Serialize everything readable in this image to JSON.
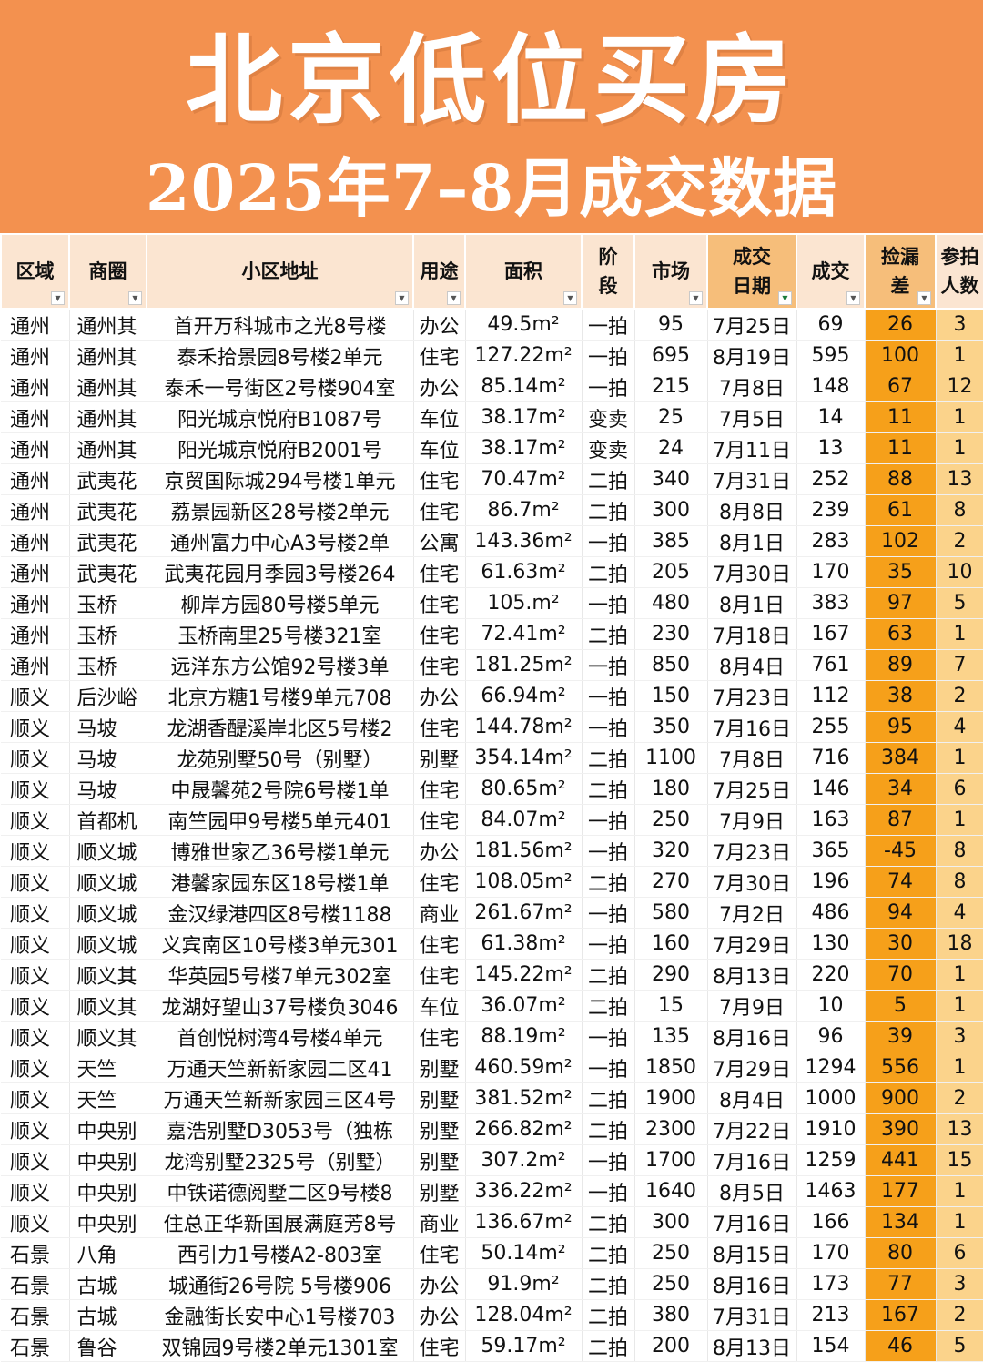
{
  "title_line1": "北京低位买房",
  "title_line2": "2025年7–8月成交数据",
  "headers": [
    {
      "label": "区域",
      "filter": "filter-arrow-icon"
    },
    {
      "label": "商圈",
      "filter": "filter-arrow-icon"
    },
    {
      "label": "小区地址",
      "filter": "filter-arrow-icon"
    },
    {
      "label": "用途",
      "filter": "filter-arrow-icon"
    },
    {
      "label": "面积",
      "filter": "filter-arrow-icon"
    },
    {
      "label": "阶段",
      "filter": ""
    },
    {
      "label": "市场",
      "filter": "filter-arrow-icon"
    },
    {
      "label": "成交日期",
      "filter": "filter-active-icon"
    },
    {
      "label": "成交",
      "filter": "filter-arrow-icon"
    },
    {
      "label": "捡漏差",
      "filter": "filter-arrow-icon"
    },
    {
      "label": "参拍人数",
      "filter": ""
    }
  ],
  "rows": [
    [
      "通州",
      "通州其",
      "首开万科城市之光8号楼",
      "办公",
      "49.5m²",
      "一拍",
      "95",
      "7月25日",
      "69",
      "26",
      "3"
    ],
    [
      "通州",
      "通州其",
      "泰禾拾景园8号楼2单元",
      "住宅",
      "127.22m²",
      "一拍",
      "695",
      "8月19日",
      "595",
      "100",
      "1"
    ],
    [
      "通州",
      "通州其",
      "泰禾一号街区2号楼904室",
      "办公",
      "85.14m²",
      "一拍",
      "215",
      "7月8日",
      "148",
      "67",
      "12"
    ],
    [
      "通州",
      "通州其",
      "阳光城京悦府B1087号",
      "车位",
      "38.17m²",
      "变卖",
      "25",
      "7月5日",
      "14",
      "11",
      "1"
    ],
    [
      "通州",
      "通州其",
      "阳光城京悦府B2001号",
      "车位",
      "38.17m²",
      "变卖",
      "24",
      "7月11日",
      "13",
      "11",
      "1"
    ],
    [
      "通州",
      "武夷花",
      "京贸国际城294号楼1单元",
      "住宅",
      "70.47m²",
      "二拍",
      "340",
      "7月31日",
      "252",
      "88",
      "13"
    ],
    [
      "通州",
      "武夷花",
      "荔景园新区28号楼2单元",
      "住宅",
      "86.7m²",
      "二拍",
      "300",
      "8月8日",
      "239",
      "61",
      "8"
    ],
    [
      "通州",
      "武夷花",
      "通州富力中心A3号楼2单",
      "公寓",
      "143.36m²",
      "一拍",
      "385",
      "8月1日",
      "283",
      "102",
      "2"
    ],
    [
      "通州",
      "武夷花",
      "武夷花园月季园3号楼264",
      "住宅",
      "61.63m²",
      "二拍",
      "205",
      "7月30日",
      "170",
      "35",
      "10"
    ],
    [
      "通州",
      "玉桥",
      "柳岸方园80号楼5单元",
      "住宅",
      "105.m²",
      "一拍",
      "480",
      "8月1日",
      "383",
      "97",
      "5"
    ],
    [
      "通州",
      "玉桥",
      "玉桥南里25号楼321室",
      "住宅",
      "72.41m²",
      "二拍",
      "230",
      "7月18日",
      "167",
      "63",
      "1"
    ],
    [
      "通州",
      "玉桥",
      "远洋东方公馆92号楼3单",
      "住宅",
      "181.25m²",
      "一拍",
      "850",
      "8月4日",
      "761",
      "89",
      "7"
    ],
    [
      "顺义",
      "后沙峪",
      "北京方糖1号楼9单元708",
      "办公",
      "66.94m²",
      "一拍",
      "150",
      "7月23日",
      "112",
      "38",
      "2"
    ],
    [
      "顺义",
      "马坡",
      "龙湖香醍溪岸北区5号楼2",
      "住宅",
      "144.78m²",
      "一拍",
      "350",
      "7月16日",
      "255",
      "95",
      "4"
    ],
    [
      "顺义",
      "马坡",
      "龙苑别墅50号（别墅）",
      "别墅",
      "354.14m²",
      "二拍",
      "1100",
      "7月8日",
      "716",
      "384",
      "1"
    ],
    [
      "顺义",
      "马坡",
      "中晟馨苑2号院6号楼1单",
      "住宅",
      "80.65m²",
      "二拍",
      "180",
      "7月25日",
      "146",
      "34",
      "6"
    ],
    [
      "顺义",
      "首都机",
      "南竺园甲9号楼5单元401",
      "住宅",
      "84.07m²",
      "一拍",
      "250",
      "7月9日",
      "163",
      "87",
      "1"
    ],
    [
      "顺义",
      "顺义城",
      "博雅世家乙36号楼1单元",
      "办公",
      "181.56m²",
      "一拍",
      "320",
      "7月23日",
      "365",
      "-45",
      "8"
    ],
    [
      "顺义",
      "顺义城",
      "港馨家园东区18号楼1单",
      "住宅",
      "108.05m²",
      "二拍",
      "270",
      "7月30日",
      "196",
      "74",
      "8"
    ],
    [
      "顺义",
      "顺义城",
      "金汉绿港四区8号楼1188",
      "商业",
      "261.67m²",
      "一拍",
      "580",
      "7月2日",
      "486",
      "94",
      "4"
    ],
    [
      "顺义",
      "顺义城",
      "义宾南区10号楼3单元301",
      "住宅",
      "61.38m²",
      "一拍",
      "160",
      "7月29日",
      "130",
      "30",
      "18"
    ],
    [
      "顺义",
      "顺义其",
      "华英园5号楼7单元302室",
      "住宅",
      "145.22m²",
      "二拍",
      "290",
      "8月13日",
      "220",
      "70",
      "1"
    ],
    [
      "顺义",
      "顺义其",
      "龙湖好望山37号楼负3046",
      "车位",
      "36.07m²",
      "二拍",
      "15",
      "7月9日",
      "10",
      "5",
      "1"
    ],
    [
      "顺义",
      "顺义其",
      "首创悦树湾4号楼4单元",
      "住宅",
      "88.19m²",
      "一拍",
      "135",
      "8月16日",
      "96",
      "39",
      "3"
    ],
    [
      "顺义",
      "天竺",
      "万通天竺新新家园二区41",
      "别墅",
      "460.59m²",
      "一拍",
      "1850",
      "7月29日",
      "1294",
      "556",
      "1"
    ],
    [
      "顺义",
      "天竺",
      "万通天竺新新家园三区4号",
      "别墅",
      "381.52m²",
      "二拍",
      "1900",
      "8月4日",
      "1000",
      "900",
      "2"
    ],
    [
      "顺义",
      "中央别",
      "嘉浩别墅D3053号（独栋",
      "别墅",
      "266.82m²",
      "二拍",
      "2300",
      "7月22日",
      "1910",
      "390",
      "13"
    ],
    [
      "顺义",
      "中央别",
      "龙湾别墅2325号（别墅）",
      "别墅",
      "307.2m²",
      "一拍",
      "1700",
      "7月16日",
      "1259",
      "441",
      "15"
    ],
    [
      "顺义",
      "中央别",
      "中铁诺德阅墅二区9号楼8",
      "别墅",
      "336.22m²",
      "一拍",
      "1640",
      "8月5日",
      "1463",
      "177",
      "1"
    ],
    [
      "顺义",
      "中央别",
      "住总正华新国展满庭芳8号",
      "商业",
      "136.67m²",
      "二拍",
      "300",
      "7月16日",
      "166",
      "134",
      "1"
    ],
    [
      "石景",
      "八角",
      "西引力1号楼A2-803室",
      "住宅",
      "50.14m²",
      "二拍",
      "250",
      "8月15日",
      "170",
      "80",
      "6"
    ],
    [
      "石景",
      "古城",
      "城通街26号院 5号楼906",
      "办公",
      "91.9m²",
      "二拍",
      "250",
      "8月16日",
      "173",
      "77",
      "3"
    ],
    [
      "石景",
      "古城",
      "金融街长安中心1号楼703",
      "办公",
      "128.04m²",
      "二拍",
      "380",
      "7月31日",
      "213",
      "167",
      "2"
    ],
    [
      "石景",
      "鲁谷",
      "双锦园9号楼2单元1301室",
      "住宅",
      "59.17m²",
      "二拍",
      "200",
      "8月13日",
      "154",
      "46",
      "5"
    ]
  ]
}
